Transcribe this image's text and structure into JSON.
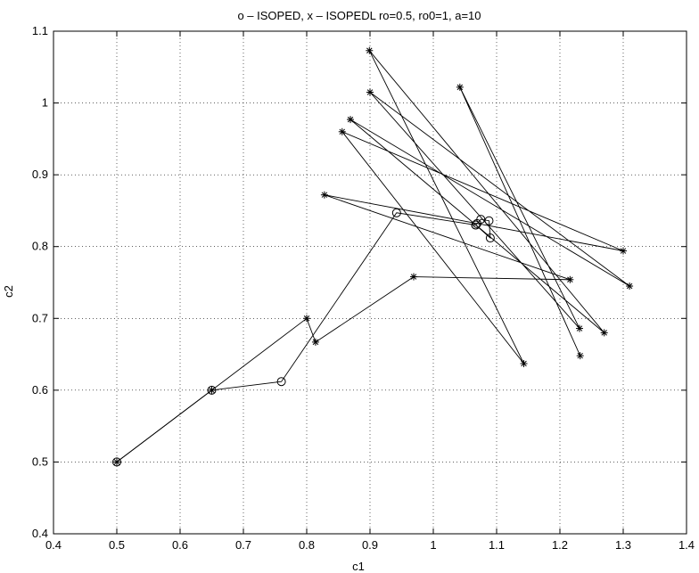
{
  "chart_data": {
    "type": "line",
    "title": "o – ISOPED,  x – ISOPEDL     ro=0.5,  ro0=1,   a=10",
    "xlabel": "c1",
    "ylabel": "c2",
    "xlim": [
      0.4,
      1.4
    ],
    "ylim": [
      0.4,
      1.1
    ],
    "xticks": [
      0.4,
      0.5,
      0.6,
      0.7,
      0.8,
      0.9,
      1,
      1.1,
      1.2,
      1.3,
      1.4
    ],
    "yticks": [
      0.4,
      0.5,
      0.6,
      0.7,
      0.8,
      0.9,
      1,
      1.1
    ],
    "xtick_labels": [
      "0.4",
      "0.5",
      "0.6",
      "0.7",
      "0.8",
      "0.9",
      "1",
      "1.1",
      "1.2",
      "1.3",
      "1.4"
    ],
    "ytick_labels": [
      "0.4",
      "0.5",
      "0.6",
      "0.7",
      "0.8",
      "0.9",
      "1",
      "1.1"
    ],
    "grid": true,
    "series": [
      {
        "marker": "o",
        "color": "#000000",
        "points": [
          [
            0.5,
            0.5
          ],
          [
            0.65,
            0.6
          ],
          [
            0.76,
            0.612
          ],
          [
            0.942,
            0.847
          ],
          [
            1.067,
            0.83
          ],
          [
            1.075,
            0.838
          ],
          [
            1.088,
            0.836
          ],
          [
            1.09,
            0.812
          ],
          [
            1.067,
            0.83
          ],
          [
            1.069,
            0.832
          ]
        ]
      },
      {
        "marker": "*",
        "color": "#000000",
        "points": [
          [
            0.5,
            0.5
          ],
          [
            0.65,
            0.6
          ],
          [
            0.8,
            0.7
          ],
          [
            0.814,
            0.667
          ],
          [
            0.969,
            0.758
          ],
          [
            1.216,
            0.754
          ],
          [
            0.828,
            0.872
          ],
          [
            1.3,
            0.794
          ],
          [
            0.856,
            0.96
          ],
          [
            1.143,
            0.637
          ],
          [
            0.899,
            1.073
          ],
          [
            1.27,
            0.68
          ],
          [
            0.869,
            0.977
          ],
          [
            1.31,
            0.745
          ],
          [
            0.9,
            1.015
          ],
          [
            1.231,
            0.686
          ],
          [
            1.042,
            1.022
          ],
          [
            1.232,
            0.648
          ]
        ]
      }
    ]
  }
}
